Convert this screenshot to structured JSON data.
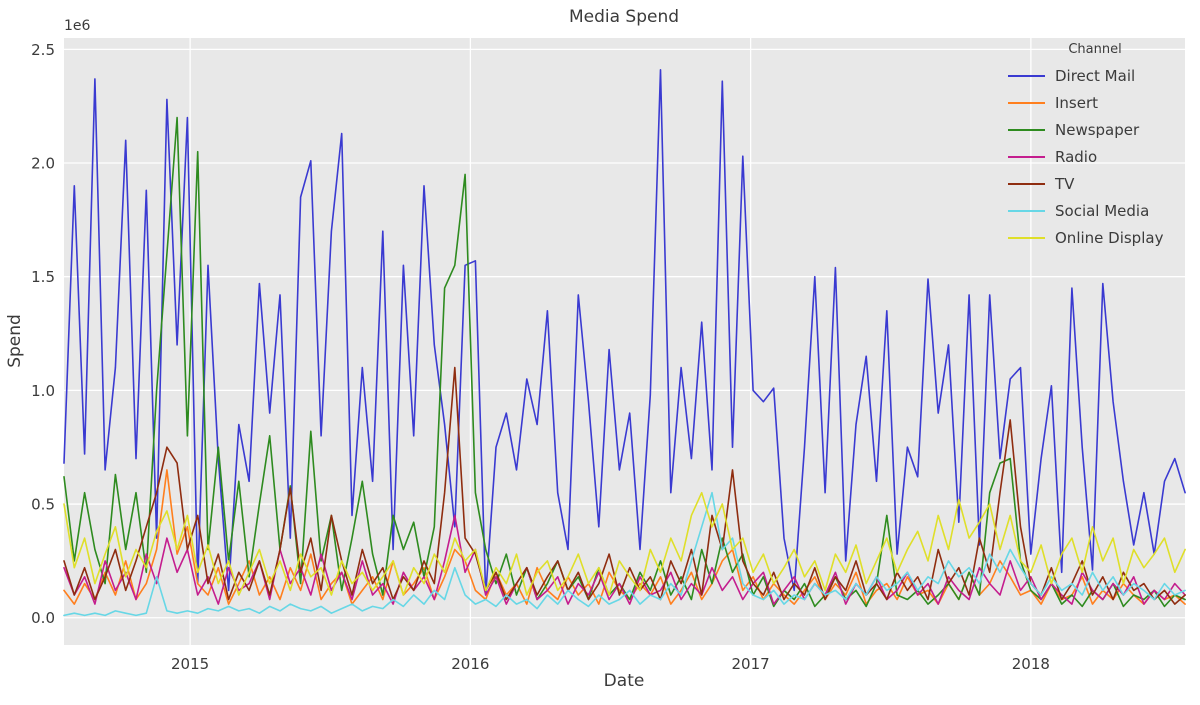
{
  "figure": {
    "title": "Media Spend",
    "xlabel": "Date",
    "ylabel": "Spend",
    "offset_text": "1e6",
    "legend_title": "Channel",
    "colors": {
      "figure_background": "#ffffff",
      "plot_background": "#e8e8e8",
      "grid_color": "#ffffff",
      "text_color": "#3b3b3b"
    }
  },
  "chart_data": {
    "type": "line",
    "title": "Media Spend",
    "xlabel": "Date",
    "ylabel": "Spend",
    "y_offset_label": "1e6",
    "y_unit_multiplier": 1000000,
    "grid": true,
    "legend_position": "upper right",
    "legend_title": "Channel",
    "x_tick_labels": [
      "2015",
      "2016",
      "2017",
      "2018"
    ],
    "x_tick_values": [
      2015,
      2016,
      2017,
      2018
    ],
    "y_tick_labels": [
      "0.0",
      "0.5",
      "1.0",
      "1.5",
      "2.0",
      "2.5"
    ],
    "y_tick_values_millions": [
      0,
      0.5,
      1,
      1.5,
      2,
      2.5
    ],
    "xlim_years": [
      2014.55,
      2018.55
    ],
    "ylim_millions": [
      -0.12,
      2.55
    ],
    "x_start_year": 2014.55,
    "x_step_years": 0.0367,
    "series": [
      {
        "name": "Direct Mail",
        "color": "#3a3ad1",
        "values_millions": [
          0.68,
          1.9,
          0.72,
          2.37,
          0.65,
          1.1,
          2.1,
          0.7,
          1.88,
          0.35,
          2.28,
          1.2,
          2.2,
          0.15,
          1.55,
          0.7,
          0.12,
          0.85,
          0.6,
          1.47,
          0.9,
          1.42,
          0.35,
          1.85,
          2.01,
          0.8,
          1.7,
          2.13,
          0.45,
          1.1,
          0.6,
          1.7,
          0.3,
          1.55,
          0.8,
          1.9,
          1.2,
          0.85,
          0.4,
          1.55,
          1.57,
          0.1,
          0.75,
          0.9,
          0.65,
          1.05,
          0.85,
          1.35,
          0.55,
          0.3,
          1.42,
          0.95,
          0.4,
          1.18,
          0.65,
          0.9,
          0.3,
          0.98,
          2.41,
          0.55,
          1.1,
          0.7,
          1.3,
          0.65,
          2.36,
          0.75,
          2.03,
          1.0,
          0.95,
          1.01,
          0.35,
          0.12,
          0.75,
          1.5,
          0.55,
          1.54,
          0.25,
          0.85,
          1.15,
          0.6,
          1.35,
          0.28,
          0.75,
          0.62,
          1.49,
          0.9,
          1.2,
          0.42,
          1.42,
          0.32,
          1.42,
          0.7,
          1.05,
          1.1,
          0.28,
          0.7,
          1.02,
          0.2,
          1.45,
          0.75,
          0.21,
          1.47,
          0.95,
          0.6,
          0.32,
          0.55,
          0.28,
          0.6,
          0.7,
          0.55
        ]
      },
      {
        "name": "Insert",
        "color": "#ff7f1e",
        "values_millions": [
          0.12,
          0.06,
          0.15,
          0.08,
          0.2,
          0.1,
          0.25,
          0.08,
          0.15,
          0.3,
          0.65,
          0.28,
          0.4,
          0.15,
          0.1,
          0.22,
          0.06,
          0.15,
          0.25,
          0.1,
          0.18,
          0.08,
          0.22,
          0.12,
          0.28,
          0.08,
          0.15,
          0.2,
          0.06,
          0.12,
          0.18,
          0.08,
          0.25,
          0.1,
          0.15,
          0.22,
          0.08,
          0.18,
          0.3,
          0.25,
          0.12,
          0.08,
          0.2,
          0.1,
          0.15,
          0.06,
          0.22,
          0.12,
          0.08,
          0.18,
          0.1,
          0.15,
          0.06,
          0.2,
          0.12,
          0.08,
          0.15,
          0.1,
          0.18,
          0.06,
          0.12,
          0.2,
          0.08,
          0.15,
          0.25,
          0.3,
          0.12,
          0.18,
          0.08,
          0.15,
          0.1,
          0.06,
          0.12,
          0.18,
          0.08,
          0.15,
          0.1,
          0.2,
          0.06,
          0.12,
          0.15,
          0.08,
          0.18,
          0.1,
          0.12,
          0.06,
          0.15,
          0.08,
          0.2,
          0.1,
          0.15,
          0.25,
          0.18,
          0.1,
          0.12,
          0.06,
          0.15,
          0.08,
          0.1,
          0.18,
          0.06,
          0.12,
          0.08,
          0.15,
          0.1,
          0.06,
          0.12,
          0.08,
          0.1,
          0.06
        ]
      },
      {
        "name": "Newspaper",
        "color": "#2e8b1f",
        "values_millions": [
          0.62,
          0.25,
          0.55,
          0.3,
          0.15,
          0.63,
          0.3,
          0.55,
          0.2,
          1.0,
          1.6,
          2.2,
          0.8,
          2.05,
          0.3,
          0.75,
          0.25,
          0.6,
          0.18,
          0.5,
          0.8,
          0.3,
          0.58,
          0.15,
          0.82,
          0.25,
          0.45,
          0.12,
          0.35,
          0.6,
          0.28,
          0.1,
          0.45,
          0.3,
          0.42,
          0.18,
          0.4,
          1.45,
          1.55,
          1.95,
          0.55,
          0.3,
          0.15,
          0.28,
          0.1,
          0.22,
          0.08,
          0.15,
          0.25,
          0.12,
          0.18,
          0.08,
          0.22,
          0.1,
          0.15,
          0.08,
          0.2,
          0.12,
          0.25,
          0.1,
          0.18,
          0.08,
          0.3,
          0.15,
          0.35,
          0.2,
          0.28,
          0.1,
          0.18,
          0.05,
          0.12,
          0.08,
          0.15,
          0.05,
          0.1,
          0.18,
          0.08,
          0.12,
          0.05,
          0.15,
          0.45,
          0.1,
          0.08,
          0.12,
          0.06,
          0.1,
          0.15,
          0.08,
          0.2,
          0.1,
          0.55,
          0.68,
          0.7,
          0.25,
          0.12,
          0.08,
          0.15,
          0.06,
          0.1,
          0.05,
          0.12,
          0.08,
          0.15,
          0.05,
          0.1,
          0.08,
          0.12,
          0.05,
          0.1,
          0.08
        ]
      },
      {
        "name": "Radio",
        "color": "#c41d8e",
        "values_millions": [
          0.22,
          0.1,
          0.18,
          0.06,
          0.25,
          0.12,
          0.2,
          0.08,
          0.28,
          0.15,
          0.35,
          0.2,
          0.3,
          0.1,
          0.18,
          0.06,
          0.22,
          0.12,
          0.15,
          0.25,
          0.08,
          0.3,
          0.15,
          0.22,
          0.1,
          0.28,
          0.12,
          0.2,
          0.08,
          0.25,
          0.1,
          0.15,
          0.06,
          0.2,
          0.12,
          0.18,
          0.08,
          0.25,
          0.45,
          0.2,
          0.3,
          0.1,
          0.18,
          0.06,
          0.15,
          0.22,
          0.08,
          0.12,
          0.18,
          0.06,
          0.15,
          0.1,
          0.2,
          0.08,
          0.15,
          0.06,
          0.18,
          0.1,
          0.12,
          0.2,
          0.08,
          0.15,
          0.1,
          0.22,
          0.12,
          0.18,
          0.08,
          0.15,
          0.2,
          0.06,
          0.12,
          0.18,
          0.08,
          0.15,
          0.1,
          0.2,
          0.06,
          0.15,
          0.1,
          0.18,
          0.08,
          0.12,
          0.2,
          0.1,
          0.15,
          0.06,
          0.18,
          0.12,
          0.08,
          0.22,
          0.15,
          0.1,
          0.25,
          0.12,
          0.18,
          0.08,
          0.15,
          0.1,
          0.06,
          0.2,
          0.12,
          0.08,
          0.15,
          0.1,
          0.18,
          0.06,
          0.12,
          0.08,
          0.15,
          0.1
        ]
      },
      {
        "name": "TV",
        "color": "#8f2d10",
        "values_millions": [
          0.25,
          0.1,
          0.22,
          0.08,
          0.18,
          0.3,
          0.12,
          0.25,
          0.4,
          0.55,
          0.75,
          0.68,
          0.3,
          0.45,
          0.15,
          0.28,
          0.08,
          0.2,
          0.12,
          0.25,
          0.1,
          0.3,
          0.57,
          0.2,
          0.35,
          0.12,
          0.45,
          0.25,
          0.1,
          0.3,
          0.15,
          0.22,
          0.08,
          0.18,
          0.12,
          0.25,
          0.15,
          0.55,
          1.1,
          0.35,
          0.28,
          0.12,
          0.2,
          0.08,
          0.15,
          0.22,
          0.1,
          0.18,
          0.25,
          0.12,
          0.2,
          0.08,
          0.15,
          0.28,
          0.1,
          0.22,
          0.12,
          0.18,
          0.08,
          0.25,
          0.15,
          0.3,
          0.1,
          0.45,
          0.3,
          0.65,
          0.25,
          0.15,
          0.1,
          0.2,
          0.08,
          0.15,
          0.1,
          0.22,
          0.08,
          0.18,
          0.12,
          0.25,
          0.1,
          0.15,
          0.08,
          0.2,
          0.12,
          0.18,
          0.08,
          0.3,
          0.15,
          0.22,
          0.1,
          0.35,
          0.2,
          0.55,
          0.87,
          0.4,
          0.15,
          0.1,
          0.22,
          0.08,
          0.15,
          0.25,
          0.1,
          0.18,
          0.08,
          0.2,
          0.12,
          0.15,
          0.08,
          0.12,
          0.06,
          0.1
        ]
      },
      {
        "name": "Social Media",
        "color": "#67d7e6",
        "values_millions": [
          0.01,
          0.02,
          0.01,
          0.02,
          0.01,
          0.03,
          0.02,
          0.01,
          0.02,
          0.18,
          0.03,
          0.02,
          0.03,
          0.02,
          0.04,
          0.03,
          0.05,
          0.03,
          0.04,
          0.02,
          0.05,
          0.03,
          0.06,
          0.04,
          0.03,
          0.05,
          0.02,
          0.04,
          0.06,
          0.03,
          0.05,
          0.04,
          0.08,
          0.05,
          0.1,
          0.06,
          0.12,
          0.08,
          0.22,
          0.1,
          0.06,
          0.08,
          0.05,
          0.1,
          0.06,
          0.08,
          0.04,
          0.1,
          0.06,
          0.12,
          0.08,
          0.05,
          0.1,
          0.06,
          0.08,
          0.12,
          0.06,
          0.1,
          0.08,
          0.15,
          0.1,
          0.25,
          0.4,
          0.55,
          0.3,
          0.35,
          0.15,
          0.1,
          0.08,
          0.12,
          0.06,
          0.1,
          0.08,
          0.15,
          0.1,
          0.12,
          0.08,
          0.15,
          0.1,
          0.18,
          0.12,
          0.15,
          0.2,
          0.12,
          0.18,
          0.15,
          0.25,
          0.18,
          0.22,
          0.15,
          0.28,
          0.2,
          0.3,
          0.22,
          0.15,
          0.1,
          0.18,
          0.12,
          0.15,
          0.1,
          0.2,
          0.12,
          0.18,
          0.1,
          0.15,
          0.12,
          0.08,
          0.15,
          0.1,
          0.12
        ]
      },
      {
        "name": "Online Display",
        "color": "#dfdf29",
        "values_millions": [
          0.5,
          0.22,
          0.35,
          0.15,
          0.28,
          0.4,
          0.18,
          0.3,
          0.22,
          0.38,
          0.47,
          0.3,
          0.45,
          0.2,
          0.32,
          0.15,
          0.25,
          0.1,
          0.2,
          0.3,
          0.15,
          0.25,
          0.12,
          0.28,
          0.18,
          0.22,
          0.1,
          0.25,
          0.15,
          0.2,
          0.12,
          0.18,
          0.25,
          0.1,
          0.22,
          0.15,
          0.28,
          0.2,
          0.35,
          0.25,
          0.3,
          0.12,
          0.22,
          0.15,
          0.28,
          0.1,
          0.2,
          0.25,
          0.12,
          0.18,
          0.28,
          0.15,
          0.22,
          0.1,
          0.25,
          0.18,
          0.12,
          0.3,
          0.2,
          0.35,
          0.25,
          0.45,
          0.55,
          0.4,
          0.5,
          0.3,
          0.35,
          0.2,
          0.28,
          0.15,
          0.22,
          0.3,
          0.18,
          0.25,
          0.12,
          0.28,
          0.2,
          0.32,
          0.15,
          0.25,
          0.35,
          0.2,
          0.3,
          0.38,
          0.25,
          0.45,
          0.3,
          0.52,
          0.35,
          0.42,
          0.5,
          0.3,
          0.45,
          0.25,
          0.2,
          0.32,
          0.15,
          0.28,
          0.35,
          0.2,
          0.4,
          0.25,
          0.35,
          0.15,
          0.3,
          0.22,
          0.28,
          0.35,
          0.2,
          0.3
        ]
      }
    ]
  }
}
